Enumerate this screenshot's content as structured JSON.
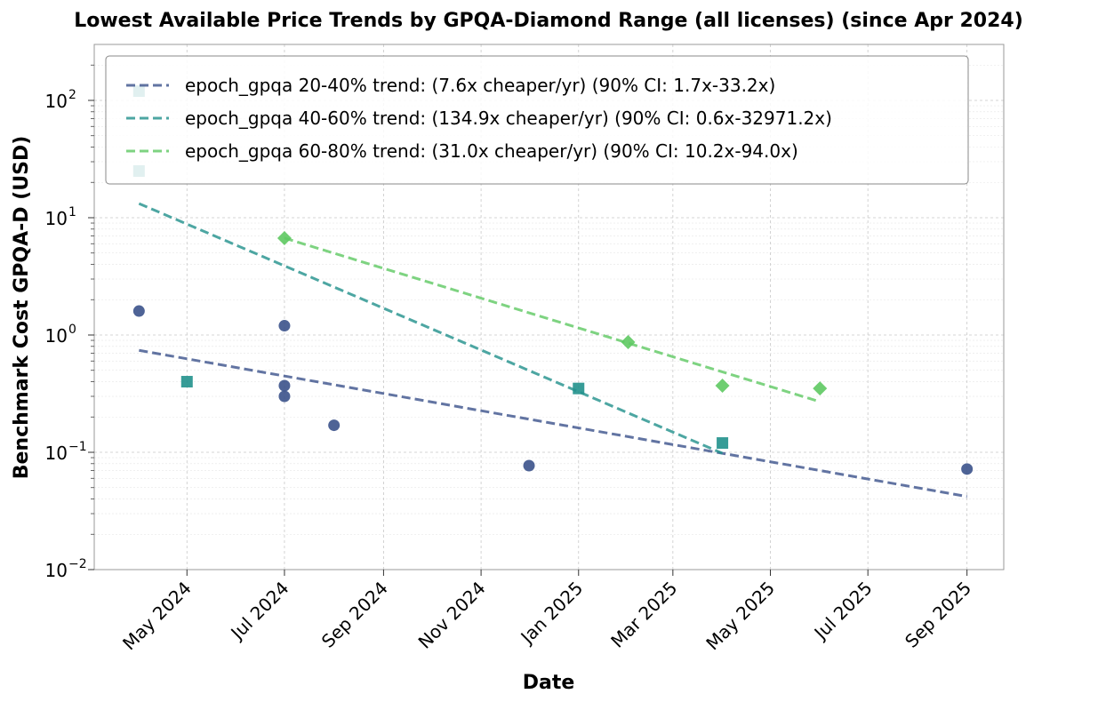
{
  "chart_data": {
    "type": "scatter",
    "title": "Lowest Available Price Trends by GPQA-Diamond Range (all licenses) (since Apr 2024)",
    "xlabel": "Date",
    "ylabel": "Benchmark Cost GPQA-D (USD)",
    "yscale": "log",
    "xlim": [
      "2024-03-04",
      "2025-09-24"
    ],
    "ylim": [
      0.01,
      300
    ],
    "grid": true,
    "legend_position": "top",
    "x_ticks": [
      {
        "date": "2024-05-01",
        "label": "May 2024"
      },
      {
        "date": "2024-07-01",
        "label": "Jul 2024"
      },
      {
        "date": "2024-09-01",
        "label": "Sep 2024"
      },
      {
        "date": "2024-11-01",
        "label": "Nov 2024"
      },
      {
        "date": "2025-01-01",
        "label": "Jan 2025"
      },
      {
        "date": "2025-03-01",
        "label": "Mar 2025"
      },
      {
        "date": "2025-05-01",
        "label": "May 2025"
      },
      {
        "date": "2025-07-01",
        "label": "Jul 2025"
      },
      {
        "date": "2025-09-01",
        "label": "Sep 2025"
      }
    ],
    "y_ticks": [
      {
        "value": 0.01,
        "base": "10",
        "exp": "−2"
      },
      {
        "value": 0.1,
        "base": "10",
        "exp": "−1"
      },
      {
        "value": 1,
        "base": "10",
        "exp": "0"
      },
      {
        "value": 10,
        "base": "10",
        "exp": "1"
      },
      {
        "value": 100,
        "base": "10",
        "exp": "2"
      }
    ],
    "series": [
      {
        "name": "epoch_gpqa 20-40%",
        "color": "#3b528b",
        "marker": "circle",
        "points": [
          {
            "x": "2024-04-01",
            "y": 1.6
          },
          {
            "x": "2024-07-01",
            "y": 1.2
          },
          {
            "x": "2024-07-01",
            "y": 0.37
          },
          {
            "x": "2024-07-01",
            "y": 0.3
          },
          {
            "x": "2024-08-01",
            "y": 0.17
          },
          {
            "x": "2024-12-01",
            "y": 0.077
          },
          {
            "x": "2025-09-01",
            "y": 0.072
          }
        ],
        "trend": {
          "label": "epoch_gpqa 20-40% trend: (7.6x cheaper/yr) (90% CI: 1.7x-33.2x)",
          "from": {
            "x": "2024-04-01",
            "y": 0.74
          },
          "to": {
            "x": "2025-09-01",
            "y": 0.042
          }
        }
      },
      {
        "name": "epoch_gpqa 40-60%",
        "color": "#21918c",
        "marker": "square",
        "points": [
          {
            "x": "2024-04-01",
            "y": 120
          },
          {
            "x": "2024-04-01",
            "y": 25
          },
          {
            "x": "2024-05-01",
            "y": 0.4
          },
          {
            "x": "2025-01-01",
            "y": 0.35
          },
          {
            "x": "2025-04-01",
            "y": 0.12
          }
        ],
        "trend": {
          "label": "epoch_gpqa 40-60% trend: (134.9x cheaper/yr) (90% CI: 0.6x-32971.2x)",
          "from": {
            "x": "2024-04-01",
            "y": 13.2
          },
          "to": {
            "x": "2025-04-01",
            "y": 0.098
          }
        }
      },
      {
        "name": "epoch_gpqa 60-80%",
        "color": "#5ec962",
        "marker": "diamond",
        "points": [
          {
            "x": "2024-07-01",
            "y": 6.7
          },
          {
            "x": "2025-02-01",
            "y": 0.87
          },
          {
            "x": "2025-04-01",
            "y": 0.37
          },
          {
            "x": "2025-06-01",
            "y": 0.35
          }
        ],
        "trend": {
          "label": "epoch_gpqa 60-80% trend: (31.0x cheaper/yr) (90% CI: 10.2x-94.0x)",
          "from": {
            "x": "2024-07-01",
            "y": 6.7
          },
          "to": {
            "x": "2025-06-01",
            "y": 0.27
          }
        }
      }
    ]
  }
}
